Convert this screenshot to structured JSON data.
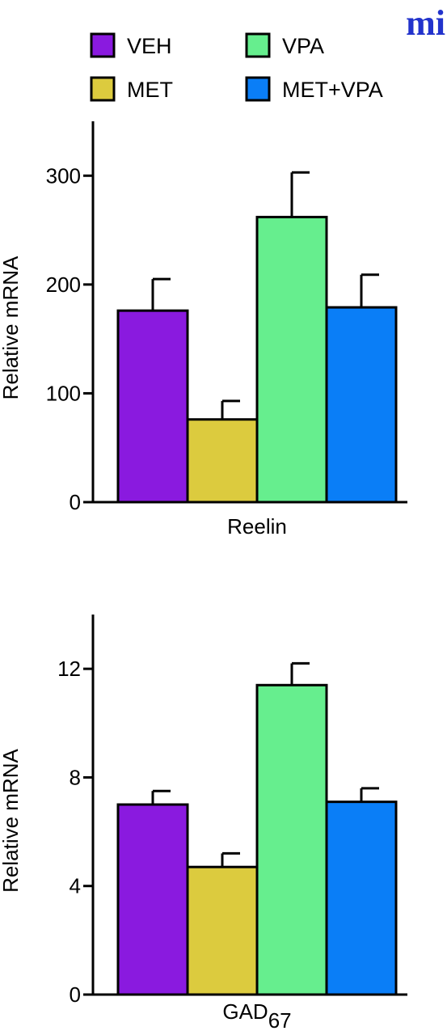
{
  "logo_text": "mi",
  "legend": [
    {
      "label": "VEH",
      "color": "#8a1adf"
    },
    {
      "label": "VPA",
      "color": "#66ee8e"
    },
    {
      "label": "MET",
      "color": "#dccb3e"
    },
    {
      "label": "MET+VPA",
      "color": "#0a7ef7"
    }
  ],
  "chart_data": [
    {
      "type": "bar",
      "title": "",
      "xlabel": "Reelin",
      "ylabel": "Relative mRNA",
      "ylim": [
        0,
        350
      ],
      "yticks": [
        0,
        100,
        200,
        300
      ],
      "categories": [
        "VEH",
        "MET",
        "VPA",
        "MET+VPA"
      ],
      "values": [
        176,
        76,
        262,
        179
      ],
      "errors": [
        29,
        17,
        41,
        30
      ],
      "colors": [
        "#8a1adf",
        "#dccb3e",
        "#66ee8e",
        "#0a7ef7"
      ],
      "grid": false
    },
    {
      "type": "bar",
      "title": "",
      "xlabel": "GAD",
      "xlabel_sub": "67",
      "ylabel": "Relative mRNA",
      "ylim": [
        0,
        14
      ],
      "yticks": [
        0,
        4,
        8,
        12
      ],
      "categories": [
        "VEH",
        "MET",
        "VPA",
        "MET+VPA"
      ],
      "values": [
        7.0,
        4.7,
        11.4,
        7.1
      ],
      "errors": [
        0.5,
        0.5,
        0.8,
        0.5
      ],
      "colors": [
        "#8a1adf",
        "#dccb3e",
        "#66ee8e",
        "#0a7ef7"
      ],
      "grid": false
    }
  ]
}
